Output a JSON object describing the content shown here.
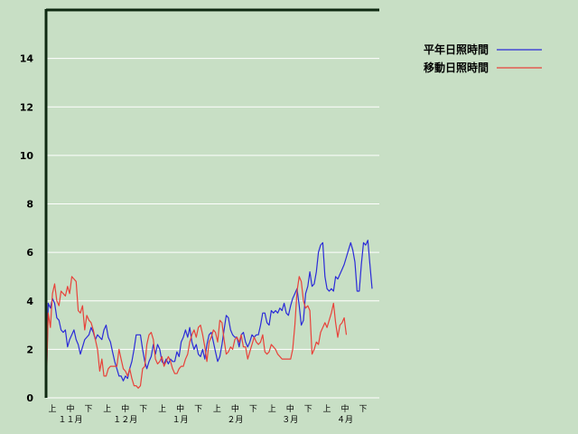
{
  "chart_data": {
    "type": "line",
    "title": "",
    "xlabel": "",
    "ylabel": "",
    "ylim": [
      0,
      16
    ],
    "y_ticks": [
      "0",
      "2",
      "4",
      "6",
      "8",
      "10",
      "12",
      "14"
    ],
    "grid": true,
    "legend_position": "top-right",
    "period_labels": [
      "上",
      "中",
      "下"
    ],
    "month_labels": [
      "１１月",
      "１２月",
      "１月",
      "２月",
      "３月",
      "４月"
    ],
    "series": [
      {
        "name": "平年日照時間",
        "color": "#2b2bd8",
        "values": [
          0,
          3.9,
          3.7,
          4.1,
          3.9,
          3.3,
          3.2,
          2.8,
          2.7,
          2.8,
          2.1,
          2.4,
          2.6,
          2.8,
          2.4,
          2.2,
          1.8,
          2.1,
          2.4,
          2.5,
          2.6,
          2.9,
          2.7,
          2.4,
          2.6,
          2.5,
          2.4,
          2.8,
          3,
          2.5,
          2.3,
          1.9,
          1.5,
          1.2,
          0.9,
          0.9,
          0.7,
          0.9,
          0.8,
          1.2,
          1.5,
          2,
          2.6,
          2.6,
          2.6,
          2,
          1.5,
          1.2,
          1.5,
          1.7,
          2.2,
          1.8,
          2.2,
          2,
          1.5,
          1.4,
          1.6,
          1.4,
          1.6,
          1.5,
          1.5,
          1.9,
          1.7,
          2.3,
          2.5,
          2.8,
          2.5,
          2.9,
          2.3,
          2,
          2.2,
          1.8,
          1.7,
          2,
          1.6,
          2.2,
          2.6,
          2.7,
          2.3,
          1.9,
          1.5,
          1.7,
          2.2,
          2.8,
          3.4,
          3.3,
          2.8,
          2.6,
          2.5,
          2.5,
          2.1,
          2.6,
          2.7,
          2.3,
          2.1,
          2.3,
          2.6,
          2.5,
          2.6,
          2.6,
          3,
          3.5,
          3.5,
          3.1,
          3,
          3.6,
          3.5,
          3.6,
          3.5,
          3.7,
          3.6,
          3.9,
          3.5,
          3.4,
          3.8,
          4.1,
          4.3,
          4.5,
          3.8,
          3,
          3.2,
          4.3,
          4.6,
          5.2,
          4.6,
          4.7,
          5.2,
          6,
          6.3,
          6.4,
          5,
          4.5,
          4.4,
          4.5,
          4.4,
          5,
          4.9,
          5.1,
          5.3,
          5.5,
          5.8,
          6.1,
          6.4,
          6.1,
          5.6,
          4.4,
          4.4,
          5.5,
          6.4,
          6.3,
          6.5,
          5.5,
          4.5
        ]
      },
      {
        "name": "移動日照時間",
        "color": "#e8423a",
        "values": [
          0,
          3.5,
          2.9,
          4.3,
          4.7,
          4,
          3.8,
          4.4,
          4.3,
          4.2,
          4.6,
          4.3,
          5,
          4.9,
          4.8,
          3.6,
          3.5,
          3.8,
          2.8,
          3.4,
          3.2,
          3.1,
          2.8,
          2.4,
          2,
          1.1,
          1.6,
          0.9,
          0.9,
          1.2,
          1.3,
          1.3,
          1.3,
          1.3,
          2,
          1.6,
          1.2,
          1.1,
          0.9,
          1.2,
          0.8,
          0.5,
          0.5,
          0.4,
          0.5,
          1.2,
          1.3,
          2.2,
          2.6,
          2.7,
          2.4,
          1.6,
          1.4,
          1.5,
          1.7,
          1.3,
          1.5,
          1.7,
          1.5,
          1.2,
          1,
          1,
          1.2,
          1.3,
          1.3,
          1.6,
          1.8,
          2.3,
          2.6,
          2.8,
          2.5,
          2.9,
          3,
          2.6,
          2.1,
          1.5,
          2.3,
          2.5,
          2.8,
          2.7,
          2.3,
          3.2,
          3.1,
          2.4,
          1.8,
          1.9,
          2.1,
          2,
          2.4,
          2.5,
          2.3,
          2.6,
          2.1,
          2.1,
          1.6,
          1.9,
          2.2,
          2.5,
          2.3,
          2.2,
          2.3,
          2.6,
          1.9,
          1.8,
          1.9,
          2.2,
          2.1,
          2,
          1.8,
          1.7,
          1.6,
          1.6,
          1.6,
          1.6,
          1.6,
          2,
          3,
          4.4,
          5,
          4.8,
          4,
          3.7,
          3.8,
          3.6,
          1.8,
          2,
          2.3,
          2.2,
          2.7,
          2.9,
          3.1,
          2.9,
          3.2,
          3.5,
          3.9,
          3.1,
          2.5,
          3,
          3.1,
          3.3,
          2.6
        ]
      }
    ]
  }
}
